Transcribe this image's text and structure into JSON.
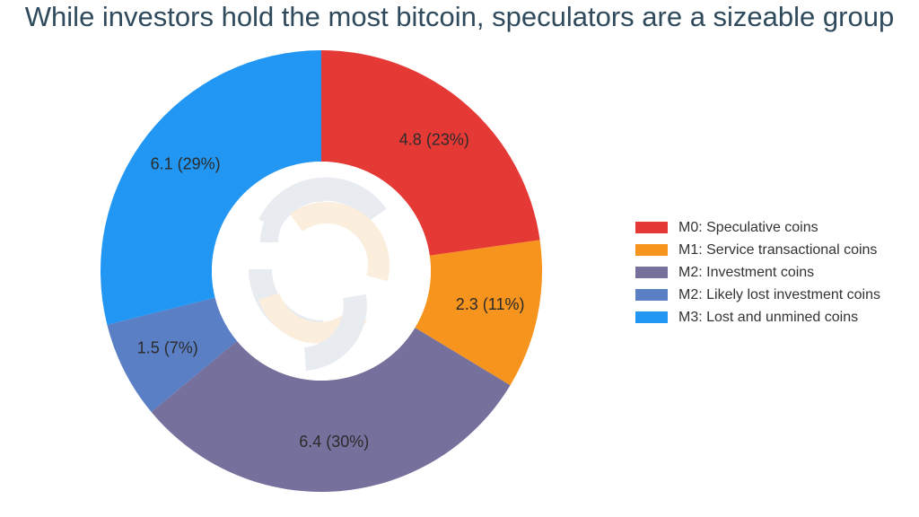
{
  "chart_data": {
    "type": "pie",
    "title": "While investors hold the most bitcoin, speculators are a sizeable group",
    "donut": true,
    "legend_position": "right",
    "slices": [
      {
        "name": "M0: Speculative coins",
        "value": 4.8,
        "percent": 23,
        "label": "4.8 (23%)",
        "color": "#e53935"
      },
      {
        "name": "M1: Service transactional coins",
        "value": 2.3,
        "percent": 11,
        "label": "2.3 (11%)",
        "color": "#f7941d"
      },
      {
        "name": "M2: Investment coins",
        "value": 6.4,
        "percent": 30,
        "label": "6.4 (30%)",
        "color": "#76709c"
      },
      {
        "name": "M2: Likely lost investment coins",
        "value": 1.5,
        "percent": 7,
        "label": "1.5 (7%)",
        "color": "#5b7fc5"
      },
      {
        "name": "M3: Lost and unmined coins",
        "value": 6.1,
        "percent": 29,
        "label": "6.1 (29%)",
        "color": "#2196f3"
      }
    ]
  },
  "watermark": {
    "logo": "interlocking-rings-logo"
  }
}
